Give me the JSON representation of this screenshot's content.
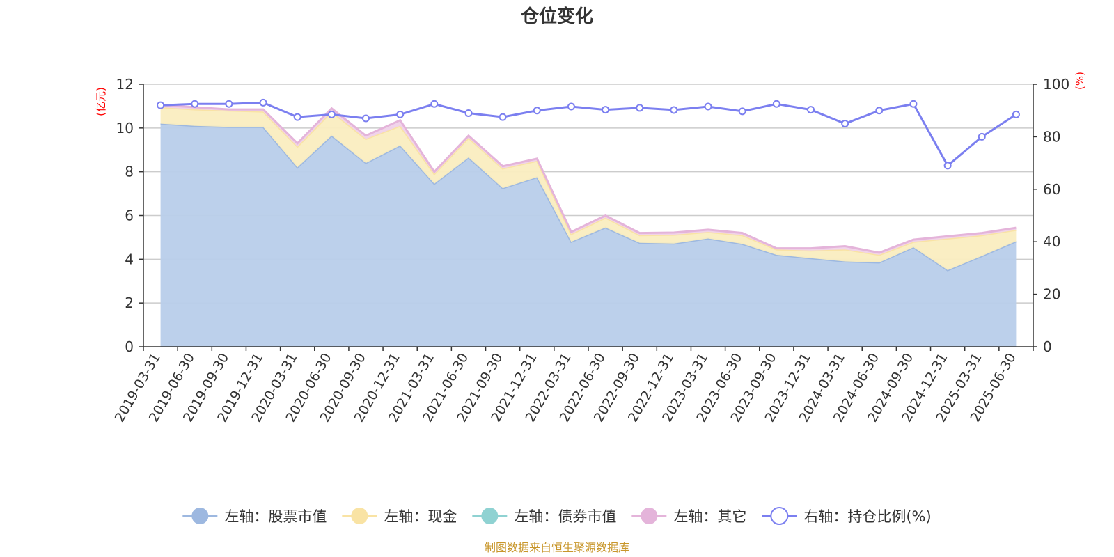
{
  "chart_data": {
    "type": "area",
    "title": "仓位变化",
    "left_axis_unit": "(亿元)",
    "right_axis_unit": "(%)",
    "y_left_lim": [
      0,
      12
    ],
    "y_left_ticks": [
      "0",
      "2",
      "4",
      "6",
      "8",
      "10",
      "12"
    ],
    "y_right_lim": [
      0,
      100
    ],
    "y_right_ticks": [
      "0",
      "20",
      "40",
      "60",
      "80",
      "100"
    ],
    "grid": true,
    "legend_position": "bottom",
    "categories": [
      "2019-03-31",
      "2019-06-30",
      "2019-09-30",
      "2019-12-31",
      "2020-03-31",
      "2020-06-30",
      "2020-09-30",
      "2020-12-31",
      "2021-03-31",
      "2021-06-30",
      "2021-09-30",
      "2021-12-31",
      "2022-03-31",
      "2022-06-30",
      "2022-09-30",
      "2022-12-31",
      "2023-03-31",
      "2023-06-30",
      "2023-09-30",
      "2023-12-31",
      "2024-03-31",
      "2024-06-30",
      "2024-09-30",
      "2024-12-31",
      "2025-03-31",
      "2025-06-30"
    ],
    "series": [
      {
        "name": "左轴：股票市值",
        "axis": "left",
        "kind": "stacked-area",
        "color": "#9db8e0",
        "fill": "#b8cdea",
        "values": [
          10.2,
          10.1,
          10.05,
          10.05,
          8.2,
          9.65,
          8.4,
          9.2,
          7.45,
          8.65,
          7.25,
          7.75,
          4.8,
          5.45,
          4.75,
          4.72,
          4.95,
          4.7,
          4.2,
          4.05,
          3.9,
          3.85,
          4.55,
          3.5,
          4.15,
          4.82
        ]
      },
      {
        "name": "左轴：现金",
        "axis": "left",
        "kind": "stacked-area",
        "color": "#f9e3a4",
        "fill": "#faedc0",
        "values": [
          0.75,
          0.75,
          0.75,
          0.7,
          0.95,
          1.1,
          1.1,
          0.9,
          0.45,
          0.9,
          0.9,
          0.75,
          0.35,
          0.45,
          0.35,
          0.4,
          0.3,
          0.4,
          0.25,
          0.35,
          0.55,
          0.35,
          0.25,
          1.45,
          0.95,
          0.52
        ]
      },
      {
        "name": "左轴：债券市值",
        "axis": "left",
        "kind": "stacked-area",
        "color": "#8fd2d2",
        "fill": "#8fd2d2",
        "values": [
          0,
          0,
          0,
          0,
          0,
          0,
          0,
          0,
          0,
          0,
          0,
          0,
          0,
          0,
          0,
          0,
          0,
          0,
          0,
          0,
          0,
          0,
          0,
          0,
          0,
          0
        ]
      },
      {
        "name": "左轴：其它",
        "axis": "left",
        "kind": "stacked-area",
        "color": "#e4b4da",
        "fill": "#f0d2ea",
        "values": [
          0.1,
          0.1,
          0.05,
          0.1,
          0.15,
          0.15,
          0.15,
          0.25,
          0.1,
          0.1,
          0.1,
          0.1,
          0.1,
          0.1,
          0.1,
          0.1,
          0.1,
          0.1,
          0.05,
          0.1,
          0.15,
          0.1,
          0.1,
          0.1,
          0.1,
          0.1
        ]
      },
      {
        "name": "右轴：持仓比例(%)",
        "axis": "right",
        "kind": "line",
        "color": "#7b7ff0",
        "values": [
          92,
          92.5,
          92.5,
          93,
          87.5,
          88.5,
          87,
          88.5,
          92.5,
          89,
          87.5,
          90,
          91.5,
          90.3,
          91,
          90.2,
          91.5,
          89.7,
          92.5,
          90.3,
          85,
          90,
          92.5,
          69,
          80,
          88.5
        ]
      }
    ]
  },
  "footer": {
    "source": "制图数据来自恒生聚源数据库"
  }
}
